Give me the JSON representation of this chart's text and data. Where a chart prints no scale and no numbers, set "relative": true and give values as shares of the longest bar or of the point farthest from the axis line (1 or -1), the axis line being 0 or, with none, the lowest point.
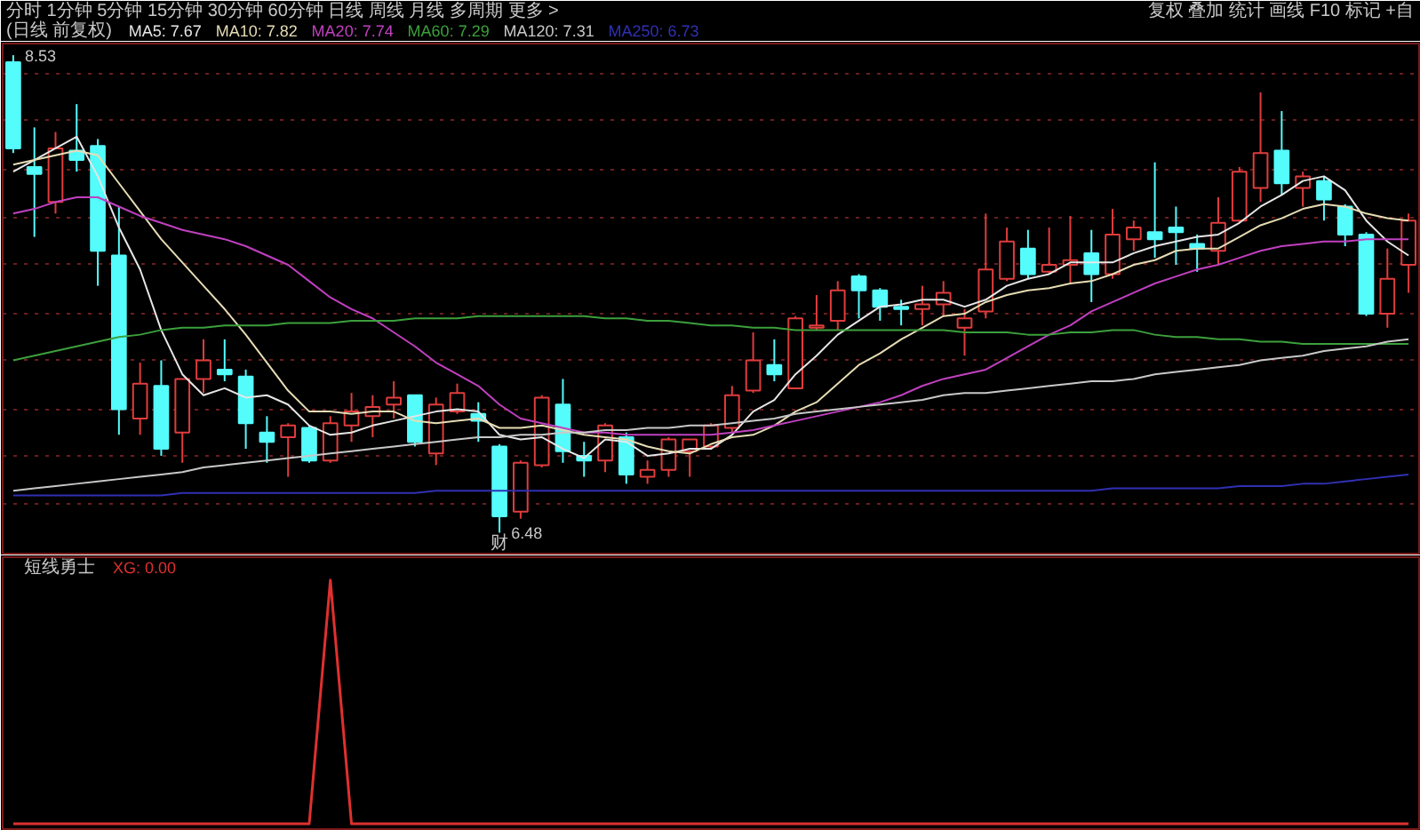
{
  "chart_data": [
    {
      "type": "candlestick",
      "title": "(日线 前复权)",
      "categories": [
        null,
        null,
        null,
        null,
        null,
        null,
        null,
        null,
        null,
        null,
        null,
        null,
        null,
        null,
        null,
        null,
        null,
        null,
        null,
        null,
        null,
        null,
        null,
        null,
        null,
        null,
        null,
        null,
        null,
        null,
        null,
        null,
        null,
        null,
        null,
        null,
        null,
        null,
        null,
        null,
        null,
        null,
        null,
        null,
        null,
        null,
        null,
        null,
        null,
        null,
        null,
        null,
        null,
        null,
        null,
        null,
        null,
        null,
        null,
        null,
        null,
        null,
        null,
        null,
        null,
        null,
        null
      ],
      "ohlc": [
        [
          8.5,
          8.53,
          8.11,
          8.13
        ],
        [
          8.05,
          8.22,
          7.75,
          8.02
        ],
        [
          7.9,
          8.2,
          7.85,
          8.13
        ],
        [
          8.12,
          8.32,
          8.03,
          8.08
        ],
        [
          8.14,
          8.17,
          7.54,
          7.69
        ],
        [
          7.67,
          7.88,
          6.9,
          7.01
        ],
        [
          6.97,
          7.21,
          6.9,
          7.12
        ],
        [
          7.11,
          7.22,
          6.81,
          6.84
        ],
        [
          6.91,
          7.14,
          6.78,
          7.14
        ],
        [
          7.14,
          7.31,
          7.08,
          7.22
        ],
        [
          7.18,
          7.31,
          7.13,
          7.16
        ],
        [
          7.15,
          7.18,
          6.84,
          6.95
        ],
        [
          6.91,
          6.98,
          6.78,
          6.87
        ],
        [
          6.89,
          6.95,
          6.72,
          6.94
        ],
        [
          6.93,
          6.94,
          6.78,
          6.79
        ],
        [
          6.79,
          6.98,
          6.78,
          6.95
        ],
        [
          6.94,
          7.08,
          6.87,
          7.0
        ],
        [
          6.98,
          7.07,
          6.89,
          7.02
        ],
        [
          7.03,
          7.13,
          6.97,
          7.06
        ],
        [
          7.07,
          7.07,
          6.85,
          6.87
        ],
        [
          6.82,
          7.06,
          6.77,
          7.03
        ],
        [
          7.0,
          7.12,
          6.99,
          7.08
        ],
        [
          6.99,
          7.04,
          6.87,
          6.96
        ],
        [
          6.85,
          6.86,
          6.48,
          6.55
        ],
        [
          6.57,
          6.79,
          6.54,
          6.78
        ],
        [
          6.77,
          7.07,
          6.76,
          7.06
        ],
        [
          7.03,
          7.14,
          6.78,
          6.83
        ],
        [
          6.81,
          6.87,
          6.72,
          6.79
        ],
        [
          6.79,
          6.95,
          6.74,
          6.94
        ],
        [
          6.89,
          6.91,
          6.69,
          6.73
        ],
        [
          6.72,
          6.79,
          6.69,
          6.75
        ],
        [
          6.75,
          6.89,
          6.72,
          6.88
        ],
        [
          6.83,
          6.88,
          6.72,
          6.88
        ],
        [
          6.85,
          6.95,
          6.84,
          6.94
        ],
        [
          6.93,
          7.11,
          6.91,
          7.07
        ],
        [
          7.09,
          7.34,
          7.08,
          7.22
        ],
        [
          7.2,
          7.31,
          7.13,
          7.16
        ],
        [
          7.1,
          7.41,
          7.1,
          7.4
        ],
        [
          7.36,
          7.5,
          7.35,
          7.37
        ],
        [
          7.39,
          7.56,
          7.35,
          7.52
        ],
        [
          7.58,
          7.59,
          7.4,
          7.52
        ],
        [
          7.52,
          7.53,
          7.39,
          7.45
        ],
        [
          7.45,
          7.48,
          7.37,
          7.44
        ],
        [
          7.44,
          7.54,
          7.37,
          7.46
        ],
        [
          7.46,
          7.56,
          7.41,
          7.51
        ],
        [
          7.36,
          7.44,
          7.24,
          7.4
        ],
        [
          7.43,
          7.85,
          7.4,
          7.61
        ],
        [
          7.57,
          7.79,
          7.56,
          7.73
        ],
        [
          7.7,
          7.78,
          7.57,
          7.59
        ],
        [
          7.6,
          7.79,
          7.59,
          7.63
        ],
        [
          7.63,
          7.84,
          7.55,
          7.65
        ],
        [
          7.68,
          7.78,
          7.47,
          7.59
        ],
        [
          7.59,
          7.87,
          7.57,
          7.76
        ],
        [
          7.74,
          7.82,
          7.69,
          7.79
        ],
        [
          7.77,
          8.07,
          7.66,
          7.74
        ],
        [
          7.79,
          7.88,
          7.63,
          7.77
        ],
        [
          7.72,
          7.76,
          7.6,
          7.7
        ],
        [
          7.69,
          7.92,
          7.63,
          7.81
        ],
        [
          7.82,
          8.05,
          7.81,
          8.03
        ],
        [
          7.96,
          8.37,
          7.9,
          8.11
        ],
        [
          8.12,
          8.29,
          7.93,
          7.98
        ],
        [
          7.96,
          8.03,
          7.88,
          8.01
        ],
        [
          7.99,
          8.01,
          7.82,
          7.91
        ],
        [
          7.88,
          7.89,
          7.71,
          7.76
        ],
        [
          7.76,
          7.77,
          7.41,
          7.42
        ],
        [
          7.42,
          7.7,
          7.36,
          7.57
        ],
        [
          7.63,
          7.85,
          7.51,
          7.82
        ]
      ],
      "colors": [
        "#54fcfc",
        "#54fcfc",
        "#e03c3c",
        "#54fcfc",
        "#54fcfc",
        "#54fcfc",
        "#e03c3c",
        "#54fcfc",
        "#e03c3c",
        "#e03c3c",
        "#54fcfc",
        "#54fcfc",
        "#54fcfc",
        "#e03c3c",
        "#54fcfc",
        "#e03c3c",
        "#e03c3c",
        "#e03c3c",
        "#e03c3c",
        "#54fcfc",
        "#e03c3c",
        "#e03c3c",
        "#54fcfc",
        "#54fcfc",
        "#e03c3c",
        "#e03c3c",
        "#54fcfc",
        "#54fcfc",
        "#e03c3c",
        "#54fcfc",
        "#e03c3c",
        "#e03c3c",
        "#e03c3c",
        "#e03c3c",
        "#e03c3c",
        "#e03c3c",
        "#54fcfc",
        "#e03c3c",
        "#e03c3c",
        "#e03c3c",
        "#54fcfc",
        "#54fcfc",
        "#54fcfc",
        "#e03c3c",
        "#e03c3c",
        "#e03c3c",
        "#e03c3c",
        "#e03c3c",
        "#54fcfc",
        "#e03c3c",
        "#e03c3c",
        "#54fcfc",
        "#e03c3c",
        "#e03c3c",
        "#54fcfc",
        "#54fcfc",
        "#54fcfc",
        "#e03c3c",
        "#e03c3c",
        "#e03c3c",
        "#54fcfc",
        "#e03c3c",
        "#54fcfc",
        "#54fcfc",
        "#54fcfc",
        "#e03c3c",
        "#e03c3c"
      ],
      "series": [
        {
          "name": "MA5: 7.67",
          "type": "line",
          "color": "#e6e6e6",
          "values": [
            8.03,
            8.08,
            8.13,
            8.18,
            8.01,
            7.79,
            7.61,
            7.35,
            7.16,
            7.07,
            7.1,
            7.06,
            7.07,
            7.03,
            6.94,
            6.9,
            6.91,
            6.94,
            6.96,
            6.98,
            7.0,
            7.01,
            7.0,
            6.9,
            6.88,
            6.89,
            6.84,
            6.8,
            6.88,
            6.87,
            6.81,
            6.82,
            6.84,
            6.84,
            6.9,
            7.0,
            7.05,
            7.16,
            7.24,
            7.33,
            7.39,
            7.45,
            7.46,
            7.48,
            7.48,
            7.45,
            7.48,
            7.54,
            7.57,
            7.59,
            7.64,
            7.64,
            7.64,
            7.68,
            7.71,
            7.73,
            7.75,
            7.76,
            7.81,
            7.88,
            7.93,
            7.99,
            8.01,
            7.95,
            7.82,
            7.73,
            7.67
          ]
        },
        {
          "name": "MA10: 7.82",
          "type": "line",
          "color": "#e6dcb4",
          "values": [
            8.06,
            8.08,
            8.1,
            8.12,
            8.1,
            7.98,
            7.86,
            7.74,
            7.64,
            7.54,
            7.44,
            7.33,
            7.21,
            7.09,
            7.0,
            7.0,
            6.99,
            7.0,
            7.0,
            6.96,
            6.95,
            6.96,
            6.97,
            6.93,
            6.93,
            6.94,
            6.92,
            6.9,
            6.89,
            6.88,
            6.85,
            6.83,
            6.82,
            6.86,
            6.89,
            6.9,
            6.94,
            7.0,
            7.04,
            7.12,
            7.2,
            7.25,
            7.31,
            7.36,
            7.41,
            7.42,
            7.47,
            7.5,
            7.52,
            7.53,
            7.55,
            7.56,
            7.59,
            7.63,
            7.65,
            7.69,
            7.7,
            7.7,
            7.75,
            7.8,
            7.83,
            7.87,
            7.89,
            7.88,
            7.85,
            7.83,
            7.82
          ]
        },
        {
          "name": "MA20: 7.74",
          "type": "line",
          "color": "#c040c0",
          "values": [
            7.85,
            7.87,
            7.9,
            7.92,
            7.92,
            7.88,
            7.84,
            7.81,
            7.78,
            7.76,
            7.74,
            7.71,
            7.67,
            7.63,
            7.56,
            7.49,
            7.44,
            7.4,
            7.34,
            7.28,
            7.21,
            7.16,
            7.11,
            7.03,
            6.97,
            6.95,
            6.93,
            6.91,
            6.91,
            6.9,
            6.9,
            6.9,
            6.9,
            6.9,
            6.91,
            6.92,
            6.94,
            6.96,
            6.98,
            7.0,
            7.02,
            7.04,
            7.07,
            7.11,
            7.14,
            7.16,
            7.18,
            7.23,
            7.28,
            7.33,
            7.37,
            7.43,
            7.47,
            7.51,
            7.55,
            7.58,
            7.61,
            7.63,
            7.66,
            7.69,
            7.71,
            7.72,
            7.73,
            7.73,
            7.74,
            7.74,
            7.74
          ]
        },
        {
          "name": "MA60: 7.29",
          "type": "line",
          "color": "#3ca03c",
          "values": [
            7.22,
            7.24,
            7.26,
            7.28,
            7.3,
            7.32,
            7.33,
            7.35,
            7.36,
            7.36,
            7.37,
            7.37,
            7.37,
            7.38,
            7.38,
            7.38,
            7.39,
            7.39,
            7.39,
            7.4,
            7.4,
            7.4,
            7.41,
            7.41,
            7.41,
            7.41,
            7.41,
            7.41,
            7.4,
            7.4,
            7.39,
            7.39,
            7.38,
            7.37,
            7.37,
            7.36,
            7.36,
            7.35,
            7.35,
            7.35,
            7.35,
            7.35,
            7.35,
            7.35,
            7.35,
            7.34,
            7.34,
            7.34,
            7.33,
            7.33,
            7.34,
            7.34,
            7.35,
            7.35,
            7.33,
            7.32,
            7.32,
            7.31,
            7.31,
            7.3,
            7.3,
            7.29,
            7.29,
            7.29,
            7.29,
            7.29,
            7.29
          ]
        },
        {
          "name": "MA120: 7.31",
          "type": "line",
          "color": "#c8c8c8",
          "values": [
            6.66,
            6.67,
            6.68,
            6.69,
            6.7,
            6.71,
            6.72,
            6.73,
            6.74,
            6.76,
            6.77,
            6.78,
            6.79,
            6.8,
            6.81,
            6.82,
            6.83,
            6.84,
            6.85,
            6.86,
            6.87,
            6.88,
            6.89,
            6.89,
            6.9,
            6.9,
            6.91,
            6.91,
            6.92,
            6.92,
            6.93,
            6.93,
            6.94,
            6.94,
            6.95,
            6.96,
            6.97,
            6.99,
            7.0,
            7.01,
            7.02,
            7.03,
            7.04,
            7.05,
            7.07,
            7.08,
            7.08,
            7.09,
            7.1,
            7.11,
            7.12,
            7.13,
            7.13,
            7.14,
            7.16,
            7.17,
            7.18,
            7.19,
            7.2,
            7.22,
            7.23,
            7.24,
            7.26,
            7.27,
            7.28,
            7.3,
            7.31
          ]
        },
        {
          "name": "MA250: 6.73",
          "type": "line",
          "color": "#3030b4",
          "values": [
            6.64,
            6.64,
            6.64,
            6.64,
            6.64,
            6.64,
            6.64,
            6.64,
            6.65,
            6.65,
            6.65,
            6.65,
            6.65,
            6.65,
            6.65,
            6.65,
            6.65,
            6.65,
            6.65,
            6.65,
            6.66,
            6.66,
            6.66,
            6.66,
            6.66,
            6.66,
            6.66,
            6.66,
            6.66,
            6.66,
            6.66,
            6.66,
            6.66,
            6.66,
            6.66,
            6.66,
            6.66,
            6.66,
            6.66,
            6.66,
            6.66,
            6.66,
            6.66,
            6.66,
            6.66,
            6.66,
            6.66,
            6.66,
            6.66,
            6.66,
            6.66,
            6.66,
            6.67,
            6.67,
            6.67,
            6.67,
            6.67,
            6.67,
            6.68,
            6.68,
            6.68,
            6.69,
            6.69,
            6.7,
            6.71,
            6.72,
            6.73
          ]
        }
      ],
      "ylim": [
        6.39,
        8.58
      ],
      "yticks": [
        {
          "value": 8.45,
          "label": null
        },
        {
          "value": 8.25,
          "label": null
        },
        {
          "value": 8.04,
          "label": null
        },
        {
          "value": 7.83,
          "label": null
        },
        {
          "value": 7.63,
          "label": null
        },
        {
          "value": 7.42,
          "label": null
        },
        {
          "value": 7.22,
          "label": null
        },
        {
          "value": 7.01,
          "label": null
        },
        {
          "value": 6.81,
          "label": null
        },
        {
          "value": 6.6,
          "label": null
        }
      ],
      "grid": "y",
      "tick_labels": false,
      "annotations": [
        "分时 1分钟 5分钟 15分钟 30分钟 60分钟 日线 周线 月线 多周期 更多 >",
        "复权 叠加 统计 画线 F10 标记 +自",
        "8.53",
        "6.48",
        "财"
      ]
    },
    {
      "type": "line",
      "title": "短线勇士",
      "relative": true,
      "categories": [
        null,
        null,
        null,
        null,
        null,
        null,
        null,
        null,
        null,
        null,
        null,
        null,
        null,
        null,
        null,
        null,
        null,
        null,
        null,
        null,
        null,
        null,
        null,
        null,
        null,
        null,
        null,
        null,
        null,
        null,
        null,
        null,
        null,
        null,
        null,
        null,
        null,
        null,
        null,
        null,
        null,
        null,
        null,
        null,
        null,
        null,
        null,
        null,
        null,
        null,
        null,
        null,
        null,
        null,
        null,
        null,
        null,
        null,
        null,
        null,
        null,
        null,
        null,
        null,
        null,
        null,
        null
      ],
      "series": [
        {
          "name": "XG: 0.00",
          "color": "#e03030",
          "values": [
            0,
            0,
            0,
            0,
            0,
            0,
            0,
            0,
            0,
            0,
            0,
            0,
            0,
            0,
            0,
            1,
            0,
            0,
            0,
            0,
            0,
            0,
            0,
            0,
            0,
            0,
            0,
            0,
            0,
            0,
            0,
            0,
            0,
            0,
            0,
            0,
            0,
            0,
            0,
            0,
            0,
            0,
            0,
            0,
            0,
            0,
            0,
            0,
            0,
            0,
            0,
            0,
            0,
            0,
            0,
            0,
            0,
            0,
            0,
            0,
            0,
            0,
            0,
            0,
            0,
            0,
            0
          ]
        }
      ]
    }
  ]
}
